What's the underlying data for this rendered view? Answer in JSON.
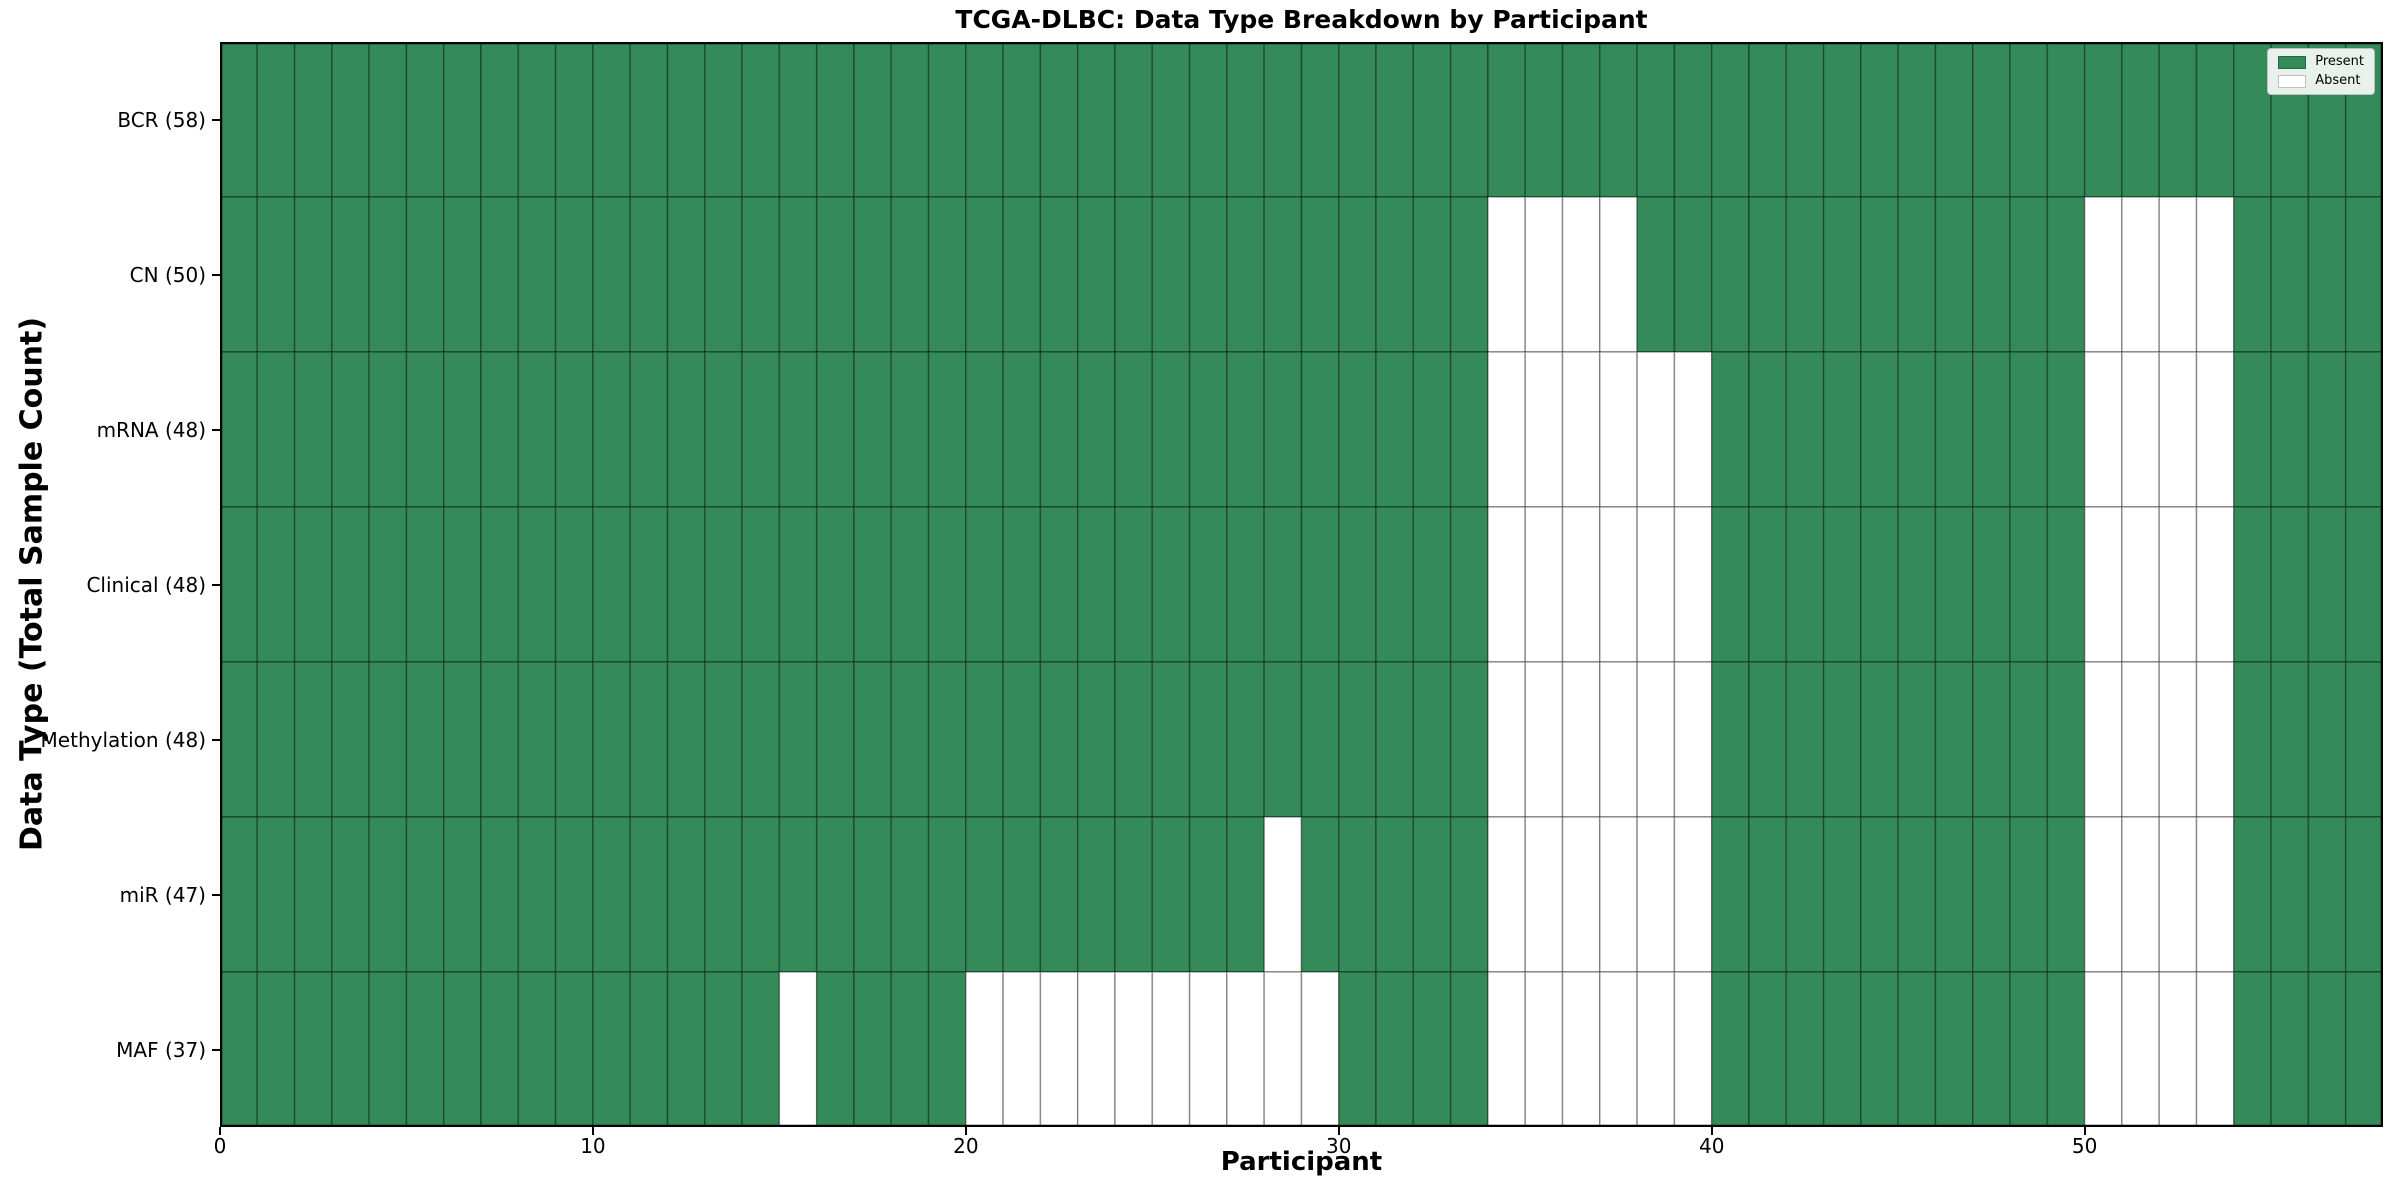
{
  "chart_data": {
    "type": "heatmap",
    "title": "TCGA-DLBC: Data Type Breakdown by Participant",
    "xlabel": "Participant",
    "ylabel": "Data Type (Total Sample Count)",
    "xlim": [
      0,
      58
    ],
    "n_participants": 58,
    "x_ticks": [
      0,
      10,
      20,
      30,
      40,
      50
    ],
    "grid": "per-cell borders",
    "rows": [
      {
        "label": "BCR (58)",
        "data_type": "BCR",
        "present_count": 58,
        "absent_participants": []
      },
      {
        "label": "CN (50)",
        "data_type": "CN",
        "present_count": 50,
        "absent_participants": [
          34,
          35,
          36,
          37,
          50,
          51,
          52,
          53
        ]
      },
      {
        "label": "mRNA (48)",
        "data_type": "mRNA",
        "present_count": 48,
        "absent_participants": [
          34,
          35,
          36,
          37,
          38,
          39,
          50,
          51,
          52,
          53
        ]
      },
      {
        "label": "Clinical (48)",
        "data_type": "Clinical",
        "present_count": 48,
        "absent_participants": [
          34,
          35,
          36,
          37,
          38,
          39,
          50,
          51,
          52,
          53
        ]
      },
      {
        "label": "Methylation (48)",
        "data_type": "Methylation",
        "present_count": 48,
        "absent_participants": [
          34,
          35,
          36,
          37,
          38,
          39,
          50,
          51,
          52,
          53
        ]
      },
      {
        "label": "miR (47)",
        "data_type": "miR",
        "present_count": 47,
        "absent_participants": [
          28,
          34,
          35,
          36,
          37,
          38,
          39,
          50,
          51,
          52,
          53
        ]
      },
      {
        "label": "MAF (37)",
        "data_type": "MAF",
        "present_count": 37,
        "absent_participants": [
          15,
          20,
          21,
          22,
          23,
          24,
          25,
          26,
          27,
          28,
          29,
          34,
          35,
          36,
          37,
          38,
          39,
          50,
          51,
          52,
          53
        ]
      }
    ],
    "legend": {
      "position": "upper right",
      "entries": [
        {
          "label": "Present",
          "color": "#348a58"
        },
        {
          "label": "Absent",
          "color": "#ffffff"
        }
      ]
    },
    "colors": {
      "present": "#348a58",
      "absent": "#ffffff",
      "cell_edge": "rgba(0,0,0,0.35)",
      "spine": "#000000"
    }
  }
}
